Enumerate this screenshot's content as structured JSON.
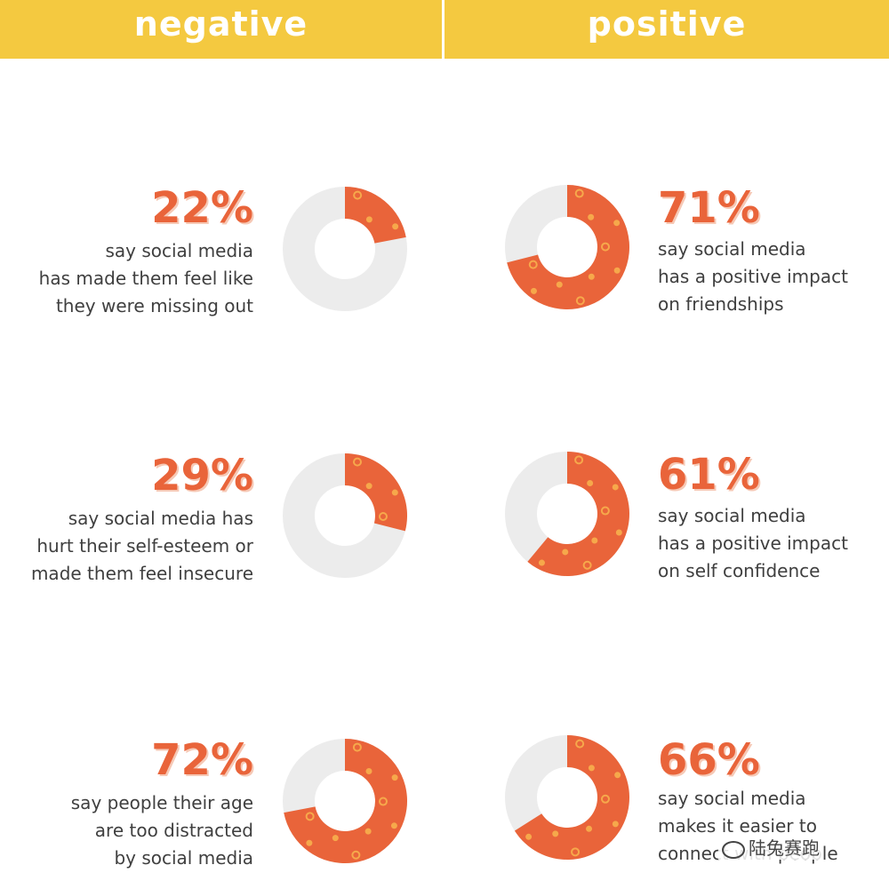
{
  "header": {
    "negative_label": "negative",
    "positive_label": "positive"
  },
  "colors": {
    "accent": "#e9643a",
    "track": "#ececec",
    "header_bg": "#f4c940",
    "text": "#3f3f3f",
    "pattern": "#f6a84b"
  },
  "chart_data": [
    {
      "type": "pie",
      "group": "negative",
      "value": 22,
      "label": "22%",
      "lines": [
        "say social media",
        "has made them feel like",
        "they were missing out"
      ]
    },
    {
      "type": "pie",
      "group": "negative",
      "value": 29,
      "label": "29%",
      "lines": [
        "say social media has",
        "hurt their self-esteem or",
        "made them feel insecure"
      ]
    },
    {
      "type": "pie",
      "group": "negative",
      "value": 72,
      "label": "72%",
      "lines": [
        "say people their age",
        "are too distracted",
        "by social media"
      ]
    },
    {
      "type": "pie",
      "group": "positive",
      "value": 71,
      "label": "71%",
      "lines": [
        "say social media",
        "has a positive impact",
        "on friendships"
      ]
    },
    {
      "type": "pie",
      "group": "positive",
      "value": 61,
      "label": "61%",
      "lines": [
        "say social media",
        "has a positive impact",
        "on self confidence"
      ]
    },
    {
      "type": "pie",
      "group": "positive",
      "value": 66,
      "label": "66%",
      "lines": [
        "say social media",
        "makes it easier to",
        "connect with people"
      ]
    }
  ],
  "watermark": {
    "text": "陆兔赛跑"
  }
}
